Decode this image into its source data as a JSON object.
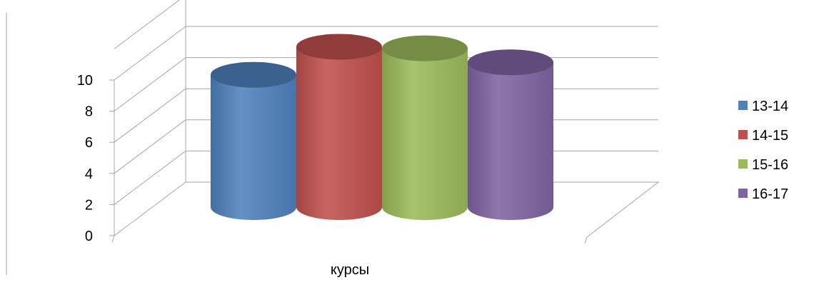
{
  "chart_data": {
    "type": "bar",
    "style": "3d-cylinder",
    "categories": [
      "курсы"
    ],
    "series": [
      {
        "name": "13-14",
        "values": [
          8.5
        ],
        "color": "#4f81bd"
      },
      {
        "name": "14-15",
        "values": [
          10.3
        ],
        "color": "#c0504d"
      },
      {
        "name": "15-16",
        "values": [
          10.2
        ],
        "color": "#9bbb59"
      },
      {
        "name": "16-17",
        "values": [
          9.3
        ],
        "color": "#8064a2"
      }
    ],
    "y_ticks": [
      "0",
      "2",
      "4",
      "6",
      "8",
      "10"
    ],
    "ylim": [
      0,
      10
    ],
    "grid": true,
    "legend_position": "right"
  }
}
